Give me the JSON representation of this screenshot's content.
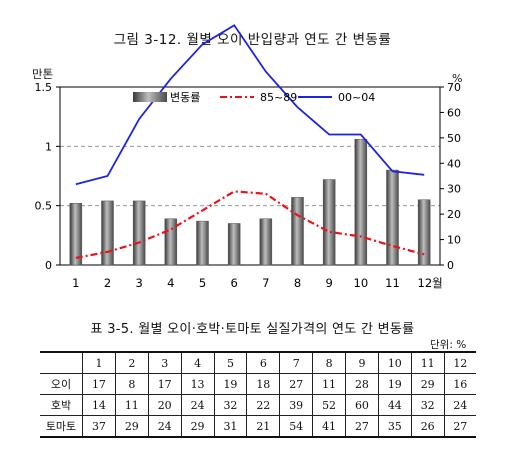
{
  "figure": {
    "title": "그림 3-12.  월별 오이 반입량과 연도 간 변동률",
    "left_unit": "만톤",
    "right_unit": "%"
  },
  "chart_data": {
    "type": "bar",
    "categories": [
      "1",
      "2",
      "3",
      "4",
      "5",
      "6",
      "7",
      "8",
      "9",
      "10",
      "11",
      "12월"
    ],
    "y_left": {
      "ticks": [
        "0",
        "0.5",
        "1",
        "1.5"
      ],
      "lim": [
        0,
        1.5
      ]
    },
    "y_right": {
      "ticks": [
        "0",
        "10",
        "20",
        "30",
        "40",
        "50",
        "60",
        "70"
      ],
      "lim": [
        0,
        70
      ]
    },
    "grid": "dashed horizontal at left-axis ticks",
    "legend": {
      "placement": "top-center"
    },
    "series": [
      {
        "name": "변동률",
        "kind": "bar",
        "axis": "left",
        "color": "#7a7a7a",
        "values": [
          0.52,
          0.54,
          0.54,
          0.39,
          0.37,
          0.35,
          0.39,
          0.57,
          0.72,
          1.06,
          0.8,
          0.55
        ]
      },
      {
        "name": "85~89",
        "kind": "line",
        "axis": "left",
        "color": "#e8141c",
        "dash": "dashdot",
        "values": [
          0.06,
          0.11,
          0.19,
          0.3,
          0.46,
          0.62,
          0.6,
          0.42,
          0.28,
          0.24,
          0.16,
          0.09
        ]
      },
      {
        "name": "00~04",
        "kind": "line",
        "axis": "left",
        "color": "#1c24e0",
        "dash": "solid",
        "values": [
          0.68,
          0.75,
          1.23,
          1.57,
          1.86,
          2.02,
          1.63,
          1.33,
          1.1,
          1.1,
          0.79,
          0.76
        ]
      }
    ]
  },
  "table": {
    "title": "표 3-5. 월별 오이·호박·토마토 실질가격의 연도 간 변동률",
    "unit": "단위: %",
    "columns": [
      "1",
      "2",
      "3",
      "4",
      "5",
      "6",
      "7",
      "8",
      "9",
      "10",
      "11",
      "12"
    ],
    "rows": [
      {
        "label": "오이",
        "values": [
          "17",
          "8",
          "17",
          "13",
          "19",
          "18",
          "27",
          "11",
          "28",
          "19",
          "29",
          "16"
        ]
      },
      {
        "label": "호박",
        "values": [
          "14",
          "11",
          "20",
          "24",
          "32",
          "22",
          "39",
          "52",
          "60",
          "44",
          "32",
          "24"
        ]
      },
      {
        "label": "토마토",
        "values": [
          "37",
          "29",
          "24",
          "29",
          "31",
          "21",
          "54",
          "41",
          "27",
          "35",
          "26",
          "27"
        ]
      }
    ]
  }
}
